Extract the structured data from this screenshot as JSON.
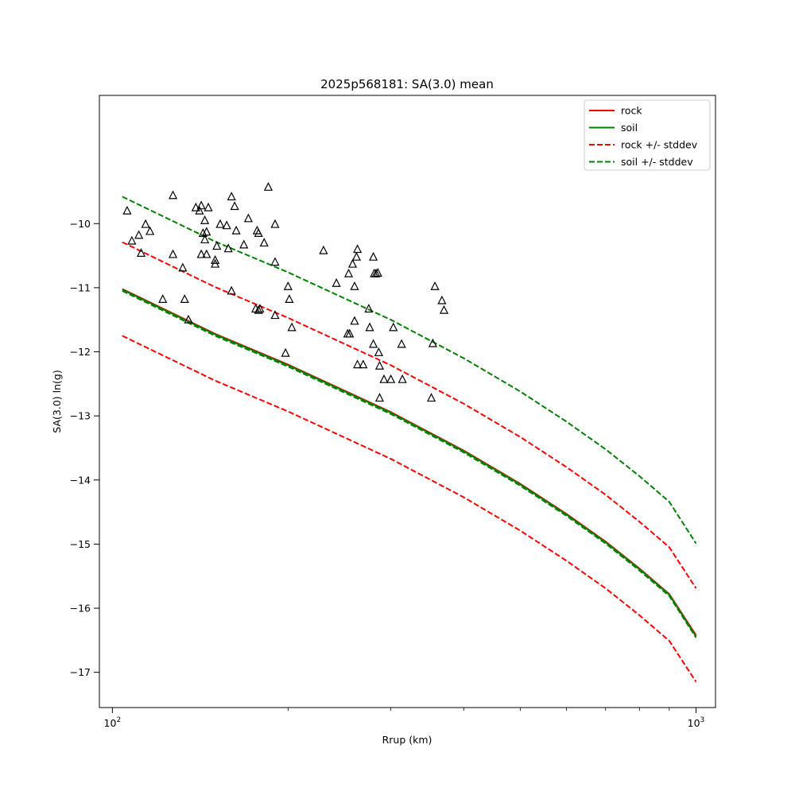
{
  "chart_data": {
    "type": "line",
    "title": "2025p568181: SA(3.0) mean",
    "xlabel": "Rrup (km)",
    "ylabel": "SA(3.0) ln(g)",
    "xscale": "log",
    "xlim": [
      95,
      1080
    ],
    "ylim": [
      -17.55,
      -8.0
    ],
    "x_ticks": [
      {
        "value": 100,
        "base": "10",
        "exp": "2"
      },
      {
        "value": 1000,
        "base": "10",
        "exp": "3"
      }
    ],
    "y_ticks": [
      {
        "value": -10,
        "label": "−10"
      },
      {
        "value": -11,
        "label": "−11"
      },
      {
        "value": -12,
        "label": "−12"
      },
      {
        "value": -13,
        "label": "−13"
      },
      {
        "value": -14,
        "label": "−14"
      },
      {
        "value": -15,
        "label": "−15"
      },
      {
        "value": -16,
        "label": "−16"
      },
      {
        "value": -17,
        "label": "−17"
      }
    ],
    "grid": false,
    "legend_position": "top-right",
    "series": [
      {
        "name": "rock",
        "color": "#ff0000",
        "dash": false,
        "x": [
          104,
          150,
          200,
          300,
          400,
          500,
          600,
          700,
          800,
          900,
          1000
        ],
        "y": [
          -11.02,
          -11.72,
          -12.2,
          -12.94,
          -13.54,
          -14.06,
          -14.53,
          -14.96,
          -15.38,
          -15.78,
          -16.42
        ]
      },
      {
        "name": "soil",
        "color": "#008000",
        "dash": false,
        "x": [
          104,
          150,
          200,
          300,
          400,
          500,
          600,
          700,
          800,
          900,
          1000
        ],
        "y": [
          -11.03,
          -11.73,
          -12.21,
          -12.95,
          -13.55,
          -14.07,
          -14.54,
          -14.97,
          -15.39,
          -15.79,
          -16.44
        ]
      },
      {
        "name": "rock +/- stddev",
        "color": "#ff0000",
        "dash": true,
        "x": [
          104,
          150,
          200,
          300,
          400,
          500,
          600,
          700,
          800,
          900,
          1000
        ],
        "y": [
          -10.29,
          -10.99,
          -11.47,
          -12.21,
          -12.81,
          -13.33,
          -13.8,
          -14.23,
          -14.65,
          -15.05,
          -15.69
        ]
      },
      {
        "name": "rock +/- stddev",
        "color": "#ff0000",
        "dash": true,
        "x": [
          104,
          150,
          200,
          300,
          400,
          500,
          600,
          700,
          800,
          900,
          1000
        ],
        "y": [
          -11.75,
          -12.45,
          -12.93,
          -13.67,
          -14.27,
          -14.79,
          -15.26,
          -15.69,
          -16.11,
          -16.51,
          -17.15
        ]
      },
      {
        "name": "soil +/- stddev",
        "color": "#008000",
        "dash": true,
        "x": [
          104,
          150,
          200,
          300,
          400,
          500,
          600,
          700,
          800,
          900,
          1000
        ],
        "y": [
          -9.58,
          -10.28,
          -10.76,
          -11.5,
          -12.1,
          -12.62,
          -13.09,
          -13.52,
          -13.94,
          -14.34,
          -14.99
        ]
      },
      {
        "name": "soil +/- stddev",
        "color": "#008000",
        "dash": true,
        "x": [
          104,
          150,
          200,
          300,
          400,
          500,
          600,
          700,
          800,
          900,
          1000
        ],
        "y": [
          -11.05,
          -11.75,
          -12.23,
          -12.97,
          -13.57,
          -14.09,
          -14.56,
          -14.99,
          -15.41,
          -15.81,
          -16.46
        ]
      }
    ],
    "observations": {
      "marker": "triangle",
      "x": [
        106,
        108,
        111,
        112,
        114,
        116,
        122,
        127,
        127,
        132,
        133,
        135,
        139,
        141,
        142,
        142,
        143,
        144,
        144,
        145,
        145,
        146,
        150,
        150,
        151,
        153,
        157,
        158,
        160,
        160,
        162,
        163,
        168,
        171,
        176,
        177,
        178,
        178,
        179,
        182,
        185,
        190,
        190,
        190,
        198,
        200,
        201,
        203,
        230,
        242,
        253,
        254,
        255,
        258,
        260,
        260,
        262,
        263,
        263,
        269,
        275,
        276,
        280,
        280,
        281,
        283,
        285,
        286,
        287,
        287,
        292,
        300,
        303,
        313,
        314,
        352,
        354,
        357,
        367,
        370
      ],
      "y": [
        -9.8,
        -10.27,
        -10.18,
        -10.46,
        -10.01,
        -10.12,
        -11.18,
        -9.56,
        -10.48,
        -10.69,
        -11.18,
        -11.5,
        -9.75,
        -9.8,
        -9.72,
        -10.48,
        -10.15,
        -9.95,
        -10.25,
        -10.13,
        -10.48,
        -9.75,
        -10.57,
        -10.63,
        -10.35,
        -10.01,
        -10.03,
        -10.39,
        -9.58,
        -11.05,
        -9.73,
        -10.11,
        -10.33,
        -9.92,
        -11.33,
        -10.11,
        -10.15,
        -11.35,
        -11.33,
        -10.3,
        -9.43,
        -10.01,
        -11.43,
        -10.6,
        -12.02,
        -10.98,
        -11.18,
        -11.62,
        -10.42,
        -10.93,
        -11.72,
        -10.78,
        -11.72,
        -10.63,
        -10.98,
        -11.52,
        -10.52,
        -10.4,
        -12.2,
        -12.2,
        -11.33,
        -11.62,
        -11.88,
        -10.52,
        -10.78,
        -10.78,
        -10.77,
        -12.01,
        -12.72,
        -12.22,
        -12.43,
        -12.43,
        -11.62,
        -11.88,
        -12.43,
        -12.72,
        -11.87,
        -10.98,
        -11.2,
        -11.35
      ]
    },
    "legend": [
      {
        "label": "rock",
        "color": "#ff0000",
        "dash": false
      },
      {
        "label": "soil",
        "color": "#008000",
        "dash": false
      },
      {
        "label": "rock +/- stddev",
        "color": "#ff0000",
        "dash": true
      },
      {
        "label": "soil +/- stddev",
        "color": "#008000",
        "dash": true
      }
    ]
  }
}
